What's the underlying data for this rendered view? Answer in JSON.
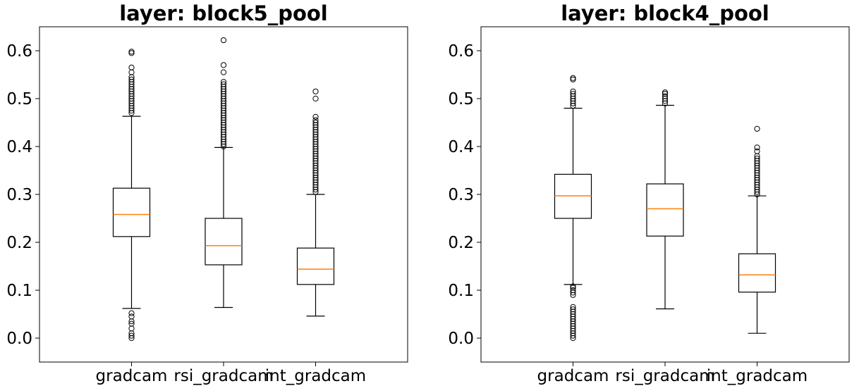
{
  "chart_data": [
    {
      "type": "boxplot",
      "title": "layer: block5_pool",
      "xlabel": "",
      "ylabel": "",
      "ylim": [
        -0.05,
        0.65
      ],
      "yticks": [
        0.0,
        0.1,
        0.2,
        0.3,
        0.4,
        0.5,
        0.6
      ],
      "ytick_labels": [
        "0.0",
        "0.1",
        "0.2",
        "0.3",
        "0.4",
        "0.5",
        "0.6"
      ],
      "categories": [
        "gradcam",
        "rsi_gradcam",
        "int_gradcam"
      ],
      "boxes": [
        {
          "label": "gradcam",
          "whisker_low": 0.062,
          "q1": 0.212,
          "median": 0.258,
          "q3": 0.313,
          "whisker_high": 0.463,
          "outliers": [
            0.0,
            0.005,
            0.01,
            0.02,
            0.03,
            0.035,
            0.045,
            0.052,
            0.47,
            0.475,
            0.48,
            0.485,
            0.49,
            0.495,
            0.5,
            0.505,
            0.51,
            0.515,
            0.52,
            0.525,
            0.53,
            0.535,
            0.54,
            0.545,
            0.555,
            0.565,
            0.595,
            0.598
          ]
        },
        {
          "label": "rsi_gradcam",
          "whisker_low": 0.064,
          "q1": 0.153,
          "median": 0.193,
          "q3": 0.25,
          "whisker_high": 0.398,
          "outliers": [
            0.4,
            0.405,
            0.41,
            0.415,
            0.42,
            0.425,
            0.43,
            0.435,
            0.44,
            0.445,
            0.45,
            0.455,
            0.46,
            0.465,
            0.47,
            0.475,
            0.48,
            0.485,
            0.49,
            0.495,
            0.5,
            0.505,
            0.51,
            0.515,
            0.52,
            0.525,
            0.53,
            0.535,
            0.555,
            0.57,
            0.622
          ]
        },
        {
          "label": "int_gradcam",
          "whisker_low": 0.046,
          "q1": 0.112,
          "median": 0.144,
          "q3": 0.188,
          "whisker_high": 0.3,
          "outliers": [
            0.305,
            0.31,
            0.315,
            0.32,
            0.325,
            0.33,
            0.335,
            0.34,
            0.345,
            0.35,
            0.355,
            0.36,
            0.365,
            0.37,
            0.375,
            0.38,
            0.385,
            0.39,
            0.395,
            0.4,
            0.405,
            0.41,
            0.415,
            0.42,
            0.425,
            0.43,
            0.435,
            0.44,
            0.445,
            0.45,
            0.455,
            0.462,
            0.5,
            0.515
          ]
        }
      ]
    },
    {
      "type": "boxplot",
      "title": "layer: block4_pool",
      "xlabel": "",
      "ylabel": "",
      "ylim": [
        -0.05,
        0.65
      ],
      "yticks": [
        0.0,
        0.1,
        0.2,
        0.3,
        0.4,
        0.5,
        0.6
      ],
      "ytick_labels": [
        "0.0",
        "0.1",
        "0.2",
        "0.3",
        "0.4",
        "0.5",
        "0.6"
      ],
      "categories": [
        "gradcam",
        "rsi_gradcam",
        "int_gradcam"
      ],
      "boxes": [
        {
          "label": "gradcam",
          "whisker_low": 0.112,
          "q1": 0.25,
          "median": 0.297,
          "q3": 0.342,
          "whisker_high": 0.48,
          "outliers": [
            0.0,
            0.005,
            0.01,
            0.015,
            0.02,
            0.025,
            0.03,
            0.035,
            0.04,
            0.045,
            0.05,
            0.055,
            0.06,
            0.065,
            0.09,
            0.095,
            0.1,
            0.105,
            0.108,
            0.485,
            0.49,
            0.495,
            0.5,
            0.505,
            0.51,
            0.515,
            0.54,
            0.543
          ]
        },
        {
          "label": "rsi_gradcam",
          "whisker_low": 0.061,
          "q1": 0.213,
          "median": 0.27,
          "q3": 0.322,
          "whisker_high": 0.486,
          "outliers": [
            0.49,
            0.495,
            0.5,
            0.505,
            0.51,
            0.513
          ]
        },
        {
          "label": "int_gradcam",
          "whisker_low": 0.01,
          "q1": 0.096,
          "median": 0.132,
          "q3": 0.176,
          "whisker_high": 0.297,
          "outliers": [
            0.3,
            0.305,
            0.31,
            0.315,
            0.32,
            0.325,
            0.33,
            0.335,
            0.34,
            0.345,
            0.35,
            0.355,
            0.36,
            0.365,
            0.37,
            0.375,
            0.38,
            0.39,
            0.398,
            0.437
          ]
        }
      ]
    }
  ]
}
